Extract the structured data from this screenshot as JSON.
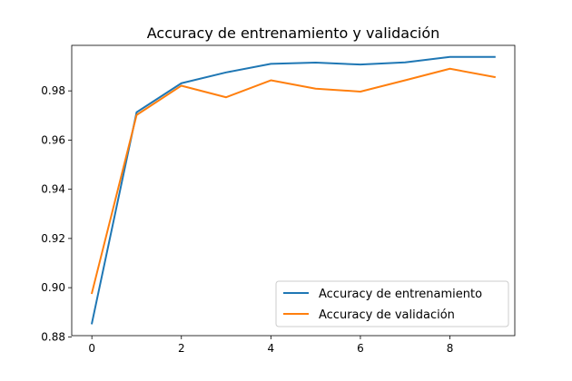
{
  "chart_data": {
    "type": "line",
    "title": "Accuracy de entrenamiento y validación",
    "xlabel": "",
    "ylabel": "",
    "xlim": [
      -0.45,
      9.45
    ],
    "ylim": [
      0.8805,
      0.9985
    ],
    "x_ticks": [
      0,
      2,
      4,
      6,
      8
    ],
    "y_ticks": [
      0.88,
      0.9,
      0.92,
      0.94,
      0.96,
      0.98
    ],
    "y_tick_labels": [
      "0.88",
      "0.90",
      "0.92",
      "0.94",
      "0.96",
      "0.98"
    ],
    "grid": false,
    "legend_position": "lower-right",
    "x": [
      0,
      1,
      2,
      3,
      4,
      5,
      6,
      7,
      8,
      9
    ],
    "series": [
      {
        "name": "Accuracy de entrenamiento",
        "color": "#1f77b4",
        "values": [
          0.8855,
          0.9713,
          0.9831,
          0.9875,
          0.991,
          0.9915,
          0.9907,
          0.9916,
          0.9938,
          0.9938
        ]
      },
      {
        "name": "Accuracy de validación",
        "color": "#ff7f0e",
        "values": [
          0.8978,
          0.9702,
          0.9821,
          0.9774,
          0.9843,
          0.9809,
          0.9797,
          0.9843,
          0.989,
          0.9856
        ]
      }
    ]
  }
}
